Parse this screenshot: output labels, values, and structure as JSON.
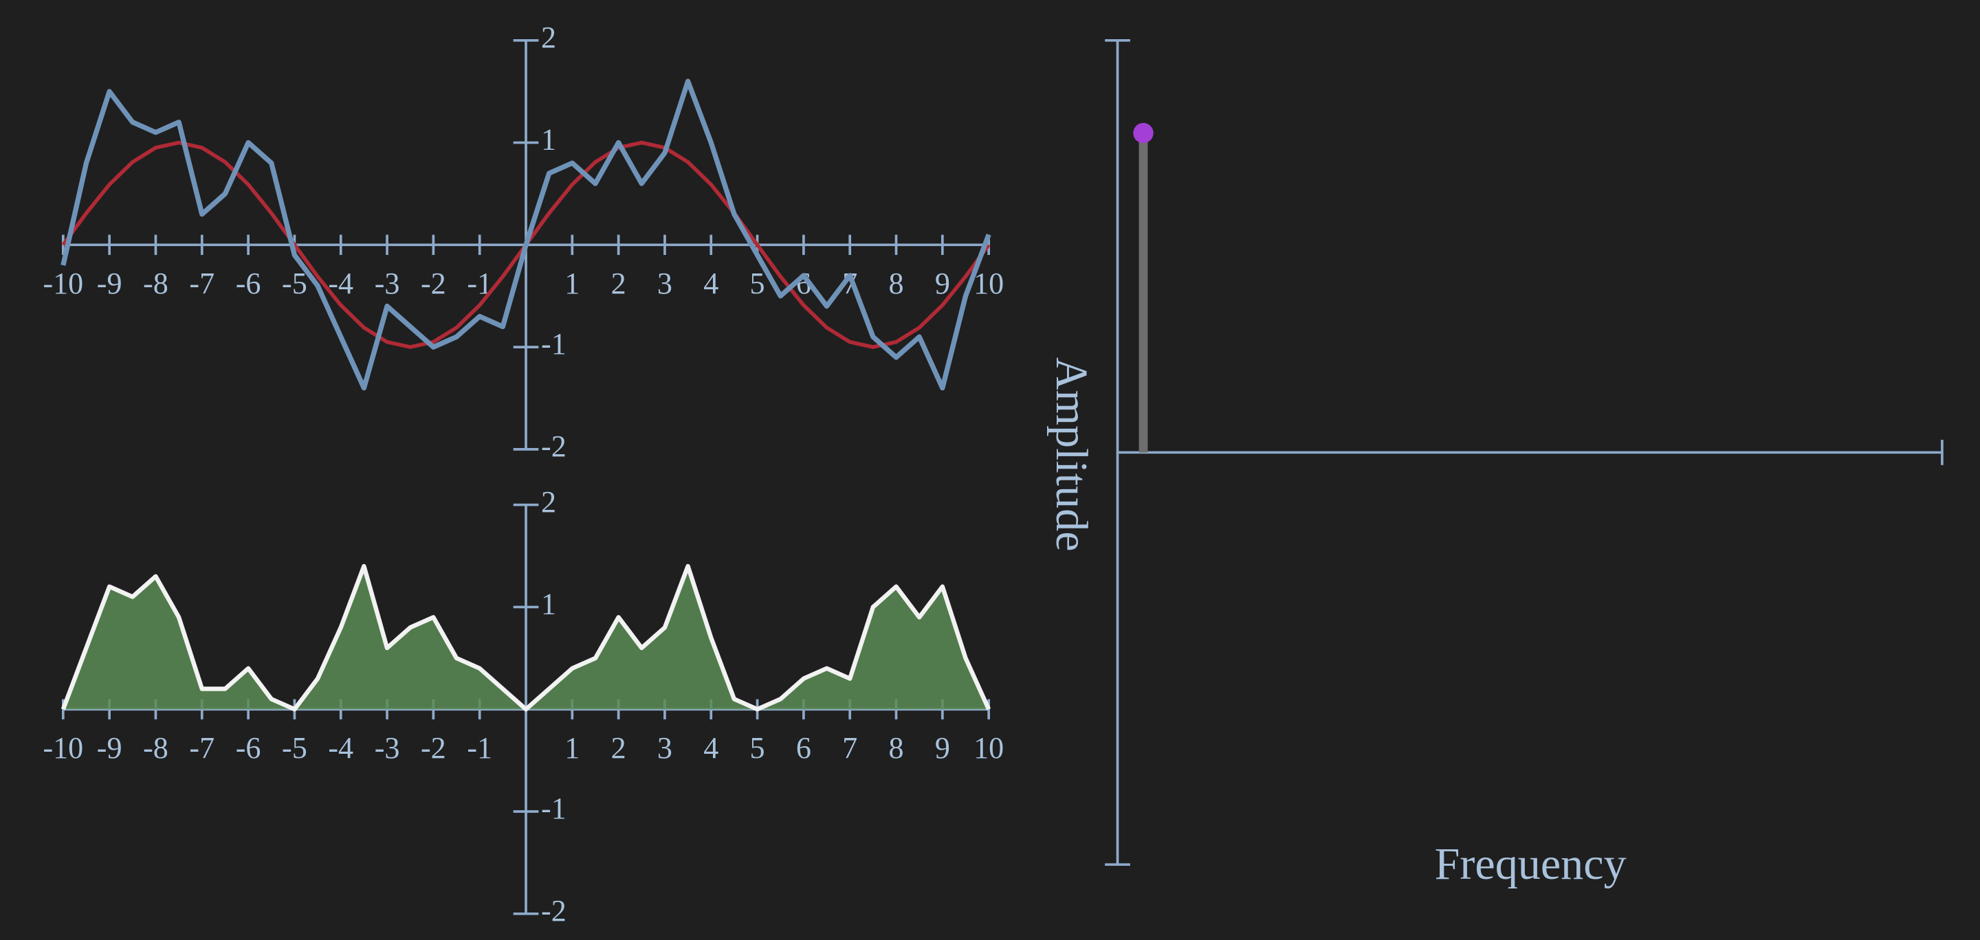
{
  "chart_data": [
    {
      "type": "line",
      "x": [
        -10,
        -9.5,
        -9,
        -8.5,
        -8,
        -7.5,
        -7,
        -6.5,
        -6,
        -5.5,
        -5,
        -4.5,
        -4,
        -3.5,
        -3,
        -2.5,
        -2,
        -1.5,
        -1,
        -0.5,
        0,
        0.5,
        1,
        1.5,
        2,
        2.5,
        3,
        3.5,
        4,
        4.5,
        5,
        5.5,
        6,
        6.5,
        7,
        7.5,
        8,
        8.5,
        9,
        9.5,
        10
      ],
      "series": [
        {
          "color": "#b02a36",
          "values": [
            0,
            0.31,
            0.59,
            0.81,
            0.95,
            1,
            0.95,
            0.81,
            0.59,
            0.31,
            0,
            -0.31,
            -0.59,
            -0.81,
            -0.95,
            -1,
            -0.95,
            -0.81,
            -0.59,
            -0.31,
            0,
            0.31,
            0.59,
            0.81,
            0.95,
            1,
            0.95,
            0.81,
            0.59,
            0.31,
            0,
            -0.31,
            -0.59,
            -0.81,
            -0.95,
            -1,
            -0.95,
            -0.81,
            -0.59,
            -0.31,
            0
          ]
        },
        {
          "color": "#6f93b8",
          "values": [
            -0.2,
            0.8,
            1.5,
            1.2,
            1.1,
            1.2,
            0.3,
            0.5,
            1.0,
            0.8,
            -0.1,
            -0.4,
            -0.9,
            -1.4,
            -0.6,
            -0.8,
            -1.0,
            -0.9,
            -0.7,
            -0.8,
            0,
            0.7,
            0.8,
            0.6,
            1.0,
            0.6,
            0.9,
            1.6,
            1.0,
            0.3,
            -0.1,
            -0.5,
            -0.3,
            -0.6,
            -0.3,
            -0.9,
            -1.1,
            -0.9,
            -1.4,
            -0.5,
            0.1
          ]
        }
      ],
      "xlim": [
        -10,
        10
      ],
      "ylim": [
        -2,
        2
      ],
      "xticks": [
        -10,
        -9,
        -8,
        -7,
        -6,
        -5,
        -4,
        -3,
        -2,
        -1,
        1,
        2,
        3,
        4,
        5,
        6,
        7,
        8,
        9,
        10
      ],
      "yticks": [
        2,
        1,
        -1,
        -2
      ]
    },
    {
      "type": "area",
      "x": [
        -10,
        -9.5,
        -9,
        -8.5,
        -8,
        -7.5,
        -7,
        -6.5,
        -6,
        -5.5,
        -5,
        -4.5,
        -4,
        -3.5,
        -3,
        -2.5,
        -2,
        -1.5,
        -1,
        -0.5,
        0,
        0.5,
        1,
        1.5,
        2,
        2.5,
        3,
        3.5,
        4,
        4.5,
        5,
        5.5,
        6,
        6.5,
        7,
        7.5,
        8,
        8.5,
        9,
        9.5,
        10
      ],
      "series": [
        {
          "color": "#5b8c55",
          "values": [
            0,
            0.6,
            1.2,
            1.1,
            1.3,
            0.9,
            0.2,
            0.2,
            0.4,
            0.1,
            0,
            0.3,
            0.8,
            1.4,
            0.6,
            0.8,
            0.9,
            0.5,
            0.4,
            0.2,
            0,
            0.2,
            0.4,
            0.5,
            0.9,
            0.6,
            0.8,
            1.4,
            0.7,
            0.1,
            0,
            0.1,
            0.3,
            0.4,
            0.3,
            1.0,
            1.2,
            0.9,
            1.2,
            0.5,
            0
          ]
        }
      ],
      "xlim": [
        -10,
        10
      ],
      "ylim": [
        -2,
        2
      ],
      "xticks": [
        -10,
        -9,
        -8,
        -7,
        -6,
        -5,
        -4,
        -3,
        -2,
        -1,
        1,
        2,
        3,
        4,
        5,
        6,
        7,
        8,
        9,
        10
      ],
      "yticks": [
        2,
        1,
        -1,
        -2
      ]
    },
    {
      "type": "stem",
      "x": [
        0.1
      ],
      "values": [
        1
      ],
      "color": "#a43fd6",
      "xlim": [
        0,
        3.2
      ],
      "ylim": [
        -1.29,
        1.29
      ],
      "xlabel": "Frequency",
      "ylabel": "Amplitude"
    }
  ]
}
